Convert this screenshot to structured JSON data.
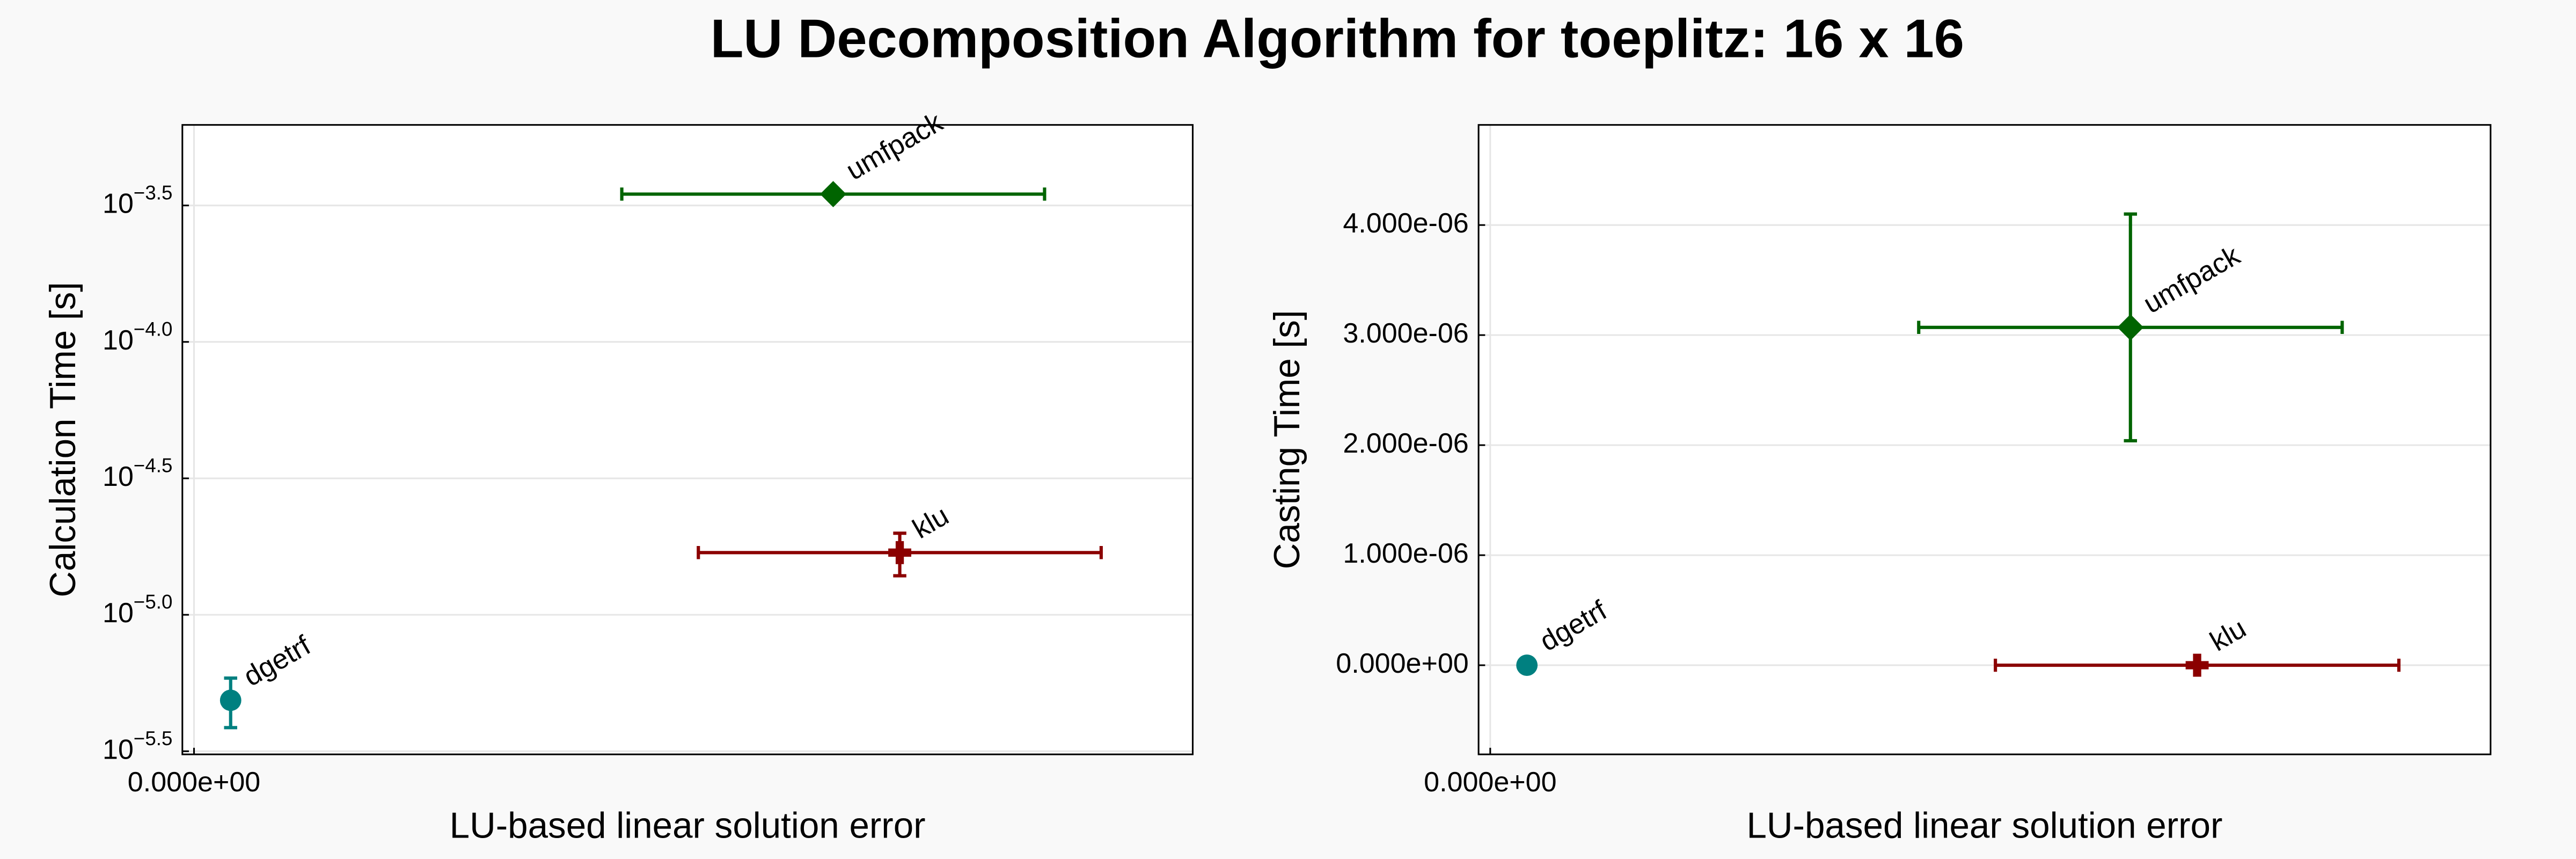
{
  "title": "LU Decomposition Algorithm for toeplitz: 16 x 16",
  "chart_data": [
    {
      "type": "scatter",
      "xlabel": "LU-based linear solution error",
      "ylabel": "Calculation Time [s]",
      "ylog": true,
      "grid": true,
      "xlim": [
        -7e-17,
        6e-15
      ],
      "xticks": [
        {
          "value": 0,
          "label": "0.000e+00"
        }
      ],
      "ylim": [
        3.08e-06,
        0.000624
      ],
      "yticks": [
        {
          "value": 0.00031623,
          "label": "10",
          "exponent": "−3.5"
        },
        {
          "value": 0.0001,
          "label": "10",
          "exponent": "−4.0"
        },
        {
          "value": 3.1623e-05,
          "label": "10",
          "exponent": "−4.5"
        },
        {
          "value": 1e-05,
          "label": "10",
          "exponent": "−5.0"
        },
        {
          "value": 3.1623e-06,
          "label": "10",
          "exponent": "−5.5"
        }
      ],
      "series": [
        {
          "name": "dgetrf",
          "color": "#008080",
          "marker": "circle",
          "x": [
            2.2e-16
          ],
          "xerr": [
            0
          ],
          "y": [
            4.86e-06
          ],
          "yerr": [
            1e-06
          ]
        },
        {
          "name": "umfpack",
          "color": "#006400",
          "marker": "diamond",
          "x": [
            3.84e-15
          ],
          "xerr": [
            1.27e-15
          ],
          "y": [
            0.000348
          ],
          "yerr": [
            0
          ]
        },
        {
          "name": "klu",
          "color": "#8b0000",
          "marker": "cross",
          "x": [
            4.24e-15
          ],
          "xerr": [
            1.21e-15
          ],
          "y": [
            1.69e-05
          ],
          "yerr": [
            3e-06
          ]
        }
      ]
    },
    {
      "type": "scatter",
      "xlabel": "LU-based linear solution error",
      "ylabel": "Casting Time [s]",
      "ylog": false,
      "grid": true,
      "xlim": [
        -7e-17,
        6e-15
      ],
      "xticks": [
        {
          "value": 0,
          "label": "0.000e+00"
        }
      ],
      "ylim": [
        -8.1e-07,
        4.91e-06
      ],
      "yticks": [
        {
          "value": 0,
          "label": "0.000e+00"
        },
        {
          "value": 1e-06,
          "label": "1.000e-06"
        },
        {
          "value": 2e-06,
          "label": "2.000e-06"
        },
        {
          "value": 3e-06,
          "label": "3.000e-06"
        },
        {
          "value": 4e-06,
          "label": "4.000e-06"
        }
      ],
      "series": [
        {
          "name": "dgetrf",
          "color": "#008080",
          "marker": "circle",
          "x": [
            2.2e-16
          ],
          "xerr": [
            0
          ],
          "y": [
            0
          ],
          "yerr": [
            0
          ]
        },
        {
          "name": "umfpack",
          "color": "#006400",
          "marker": "diamond",
          "x": [
            3.84e-15
          ],
          "xerr": [
            1.27e-15
          ],
          "y": [
            3.07e-06
          ],
          "yerr": [
            1.03e-06
          ]
        },
        {
          "name": "klu",
          "color": "#8b0000",
          "marker": "cross",
          "x": [
            4.24e-15
          ],
          "xerr": [
            1.21e-15
          ],
          "y": [
            0
          ],
          "yerr": [
            0
          ]
        }
      ]
    }
  ]
}
